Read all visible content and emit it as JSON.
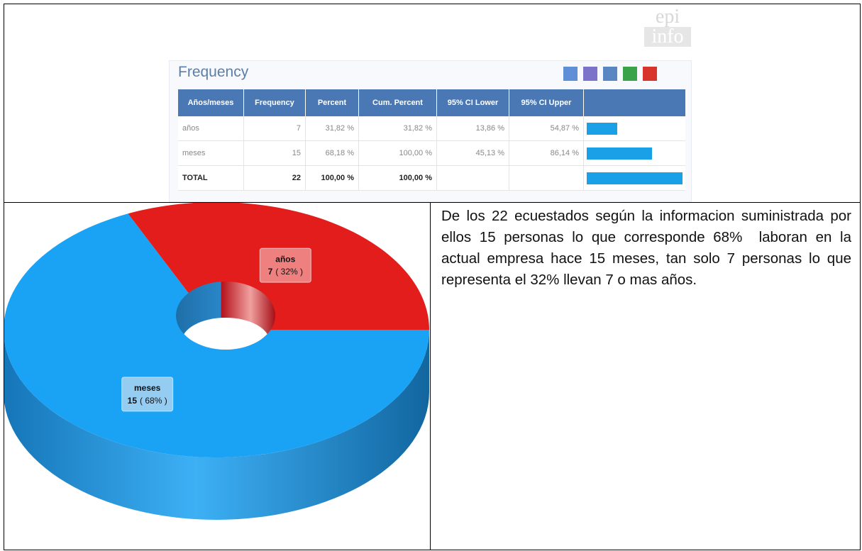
{
  "logo": [
    "epi",
    "info"
  ],
  "frequency": {
    "title": "Frequency",
    "headers": [
      "Años/meses",
      "Frequency",
      "Percent",
      "Cum. Percent",
      "95% CI Lower",
      "95% CI Upper"
    ],
    "rows": [
      [
        "años",
        "7",
        "31,82 %",
        "31,82 %",
        "13,86 %",
        "54,87 %"
      ],
      [
        "meses",
        "15",
        "68,18 %",
        "100,00 %",
        "45,13 %",
        "86,14 %"
      ],
      [
        "TOTAL",
        "22",
        "100,00 %",
        "100,00 %"
      ]
    ],
    "bars": [
      31.82,
      68.18,
      100
    ],
    "bar_color": "#1aa0e6"
  },
  "chart_data": {
    "type": "pie",
    "categories": [
      "años",
      "meses"
    ],
    "values": [
      7,
      15
    ],
    "percent_labels": [
      "( 32% )",
      "( 68% )"
    ],
    "colors": [
      "#e31c1c",
      "#1aa3f5"
    ]
  },
  "paragraph": "De los 22 ecuestados según la informacion suministrada por ellos 15 personas lo que corresponde 68%  laboran en la actual empresa hace 15 meses, tan solo 7 personas lo que representa el 32% llevan 7 o mas años."
}
